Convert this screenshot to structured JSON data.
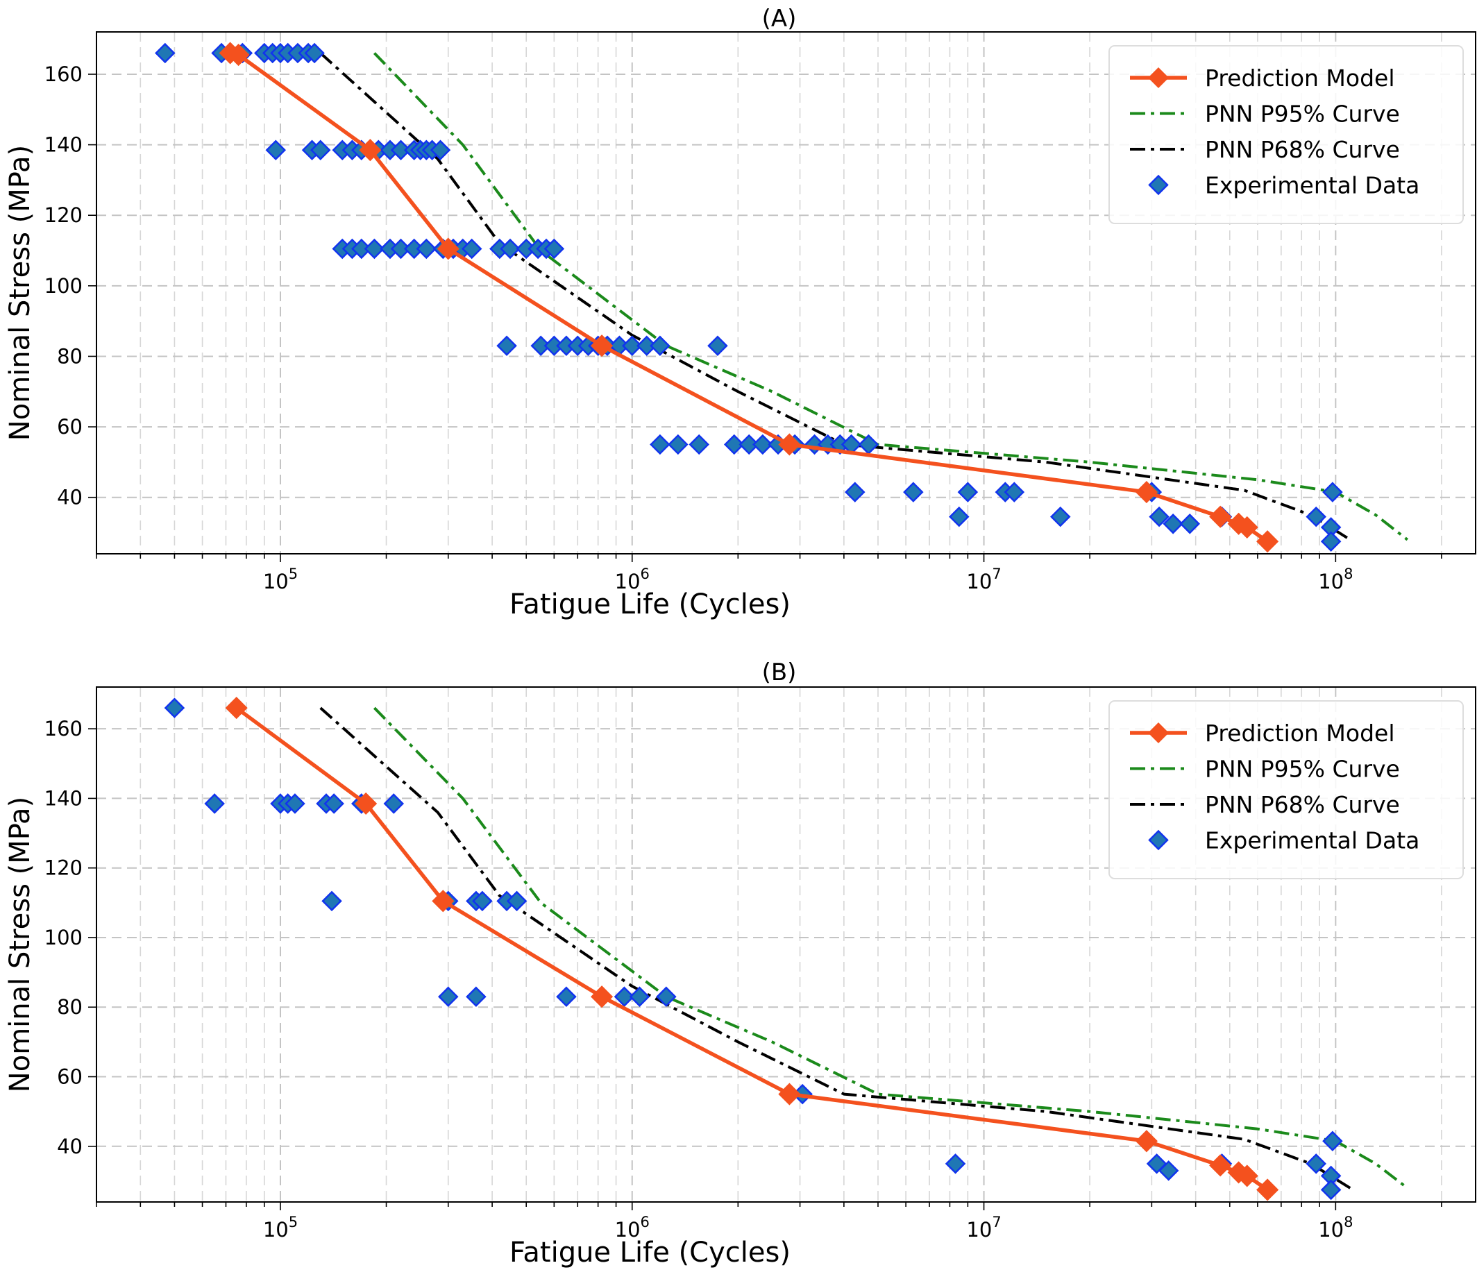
{
  "chart_data": [
    {
      "panel": "A",
      "type": "scatter",
      "title": "(A)",
      "xlabel": "Fatigue Life (Cycles)",
      "ylabel": "Nominal Stress (MPa)",
      "x_scale": "log",
      "xlim": [
        30000,
        250000000
      ],
      "ylim": [
        24,
        172
      ],
      "x_ticks": [
        {
          "value": 100000,
          "base": "10",
          "exp": "5"
        },
        {
          "value": 1000000,
          "base": "10",
          "exp": "6"
        },
        {
          "value": 10000000,
          "base": "10",
          "exp": "7"
        },
        {
          "value": 100000000,
          "base": "10",
          "exp": "8"
        }
      ],
      "y_ticks": [
        40,
        60,
        80,
        100,
        120,
        140,
        160
      ],
      "grid": true,
      "legend_position": "top-right",
      "legend": [
        {
          "key": "prediction",
          "label": "Prediction Model"
        },
        {
          "key": "p95",
          "label": "PNN P95% Curve"
        },
        {
          "key": "p68",
          "label": "PNN P68% Curve"
        },
        {
          "key": "experimental",
          "label": "Experimental Data"
        }
      ],
      "series": [
        {
          "key": "prediction",
          "name": "Prediction Model",
          "style": "line-diamond",
          "color": "#f4511e",
          "x": [
            72000,
            76000,
            180000,
            300000,
            820000,
            2800000,
            29000000,
            47000000,
            53000000,
            56000000,
            64000000
          ],
          "y": [
            166,
            165.5,
            138.5,
            110.5,
            83,
            55,
            41.5,
            34.5,
            32.5,
            31.5,
            27.5
          ]
        },
        {
          "key": "p95",
          "name": "PNN P95% Curve",
          "style": "dash-dot",
          "color": "#1b8a1b",
          "x": [
            185000,
            330000,
            550000,
            1250000,
            2500000,
            5000000,
            20000000,
            60000000,
            100000000,
            130000000,
            160000000
          ],
          "y": [
            166,
            140,
            110,
            83,
            70,
            55,
            50,
            45,
            41.5,
            35,
            28
          ]
        },
        {
          "key": "p68",
          "name": "PNN P68% Curve",
          "style": "dash-dot",
          "color": "#000000",
          "x": [
            130000,
            280000,
            420000,
            1000000,
            2000000,
            4000000,
            15000000,
            55000000,
            85000000,
            110000000
          ],
          "y": [
            166,
            136,
            112,
            86,
            70,
            55,
            50,
            42,
            35,
            28
          ]
        },
        {
          "key": "experimental",
          "name": "Experimental Data",
          "style": "diamond",
          "color": "#1f77b4",
          "edge_color": "#1133ee",
          "x": [
            47000,
            68000,
            72000,
            78000,
            90000,
            95000,
            100000,
            105000,
            112000,
            120000,
            125000,
            97000,
            123000,
            130000,
            150000,
            160000,
            170000,
            180000,
            190000,
            205000,
            220000,
            240000,
            250000,
            260000,
            270000,
            285000,
            150000,
            160000,
            170000,
            185000,
            205000,
            220000,
            240000,
            260000,
            290000,
            310000,
            330000,
            350000,
            420000,
            450000,
            500000,
            540000,
            570000,
            600000,
            440000,
            550000,
            600000,
            650000,
            700000,
            750000,
            800000,
            850000,
            920000,
            1000000,
            1100000,
            1200000,
            1750000,
            1200000,
            1350000,
            1550000,
            1950000,
            2150000,
            2350000,
            2600000,
            2900000,
            3300000,
            3600000,
            3900000,
            4200000,
            4700000,
            4300000,
            6300000,
            9000000,
            11500000,
            12200000,
            8500000,
            16500000,
            30000000,
            31500000,
            34500000,
            38500000,
            47500000,
            88000000,
            98000000,
            97000000,
            97000000
          ],
          "y": [
            166,
            166,
            166,
            166,
            166,
            166,
            166,
            166,
            166,
            166,
            166,
            138.5,
            138.5,
            138.5,
            138.5,
            138.5,
            138.5,
            138.5,
            138.5,
            138.5,
            138.5,
            138.5,
            138.5,
            138.5,
            138.5,
            138.5,
            110.5,
            110.5,
            110.5,
            110.5,
            110.5,
            110.5,
            110.5,
            110.5,
            110.5,
            110.5,
            110.5,
            110.5,
            110.5,
            110.5,
            110.5,
            110.5,
            110.5,
            110.5,
            83,
            83,
            83,
            83,
            83,
            83,
            83,
            83,
            83,
            83,
            83,
            83,
            83,
            55,
            55,
            55,
            55,
            55,
            55,
            55,
            55,
            55,
            55,
            55,
            55,
            55,
            41.5,
            41.5,
            41.5,
            41.5,
            41.5,
            34.5,
            34.5,
            41.5,
            34.5,
            32.5,
            32.5,
            34.5,
            34.5,
            41.5,
            31.5,
            27.5
          ]
        }
      ]
    },
    {
      "panel": "B",
      "type": "scatter",
      "title": "(B)",
      "xlabel": "Fatigue Life (Cycles)",
      "ylabel": "Nominal Stress (MPa)",
      "x_scale": "log",
      "xlim": [
        30000,
        250000000
      ],
      "ylim": [
        24,
        172
      ],
      "x_ticks": [
        {
          "value": 100000,
          "base": "10",
          "exp": "5"
        },
        {
          "value": 1000000,
          "base": "10",
          "exp": "6"
        },
        {
          "value": 10000000,
          "base": "10",
          "exp": "7"
        },
        {
          "value": 100000000,
          "base": "10",
          "exp": "8"
        }
      ],
      "y_ticks": [
        40,
        60,
        80,
        100,
        120,
        140,
        160
      ],
      "grid": true,
      "legend_position": "top-right",
      "legend": [
        {
          "key": "prediction",
          "label": "Prediction Model"
        },
        {
          "key": "p95",
          "label": "PNN P95% Curve"
        },
        {
          "key": "p68",
          "label": "PNN P68% Curve"
        },
        {
          "key": "experimental",
          "label": "Experimental Data"
        }
      ],
      "series": [
        {
          "key": "prediction",
          "name": "Prediction Model",
          "style": "line-diamond",
          "color": "#f4511e",
          "x": [
            75000,
            175000,
            290000,
            820000,
            2800000,
            29000000,
            47000000,
            53000000,
            56000000,
            64000000
          ],
          "y": [
            166,
            138.5,
            110.5,
            83,
            55,
            41.5,
            34.5,
            32.5,
            31.5,
            27.5
          ]
        },
        {
          "key": "p95",
          "name": "PNN P95% Curve",
          "style": "dash-dot",
          "color": "#1b8a1b",
          "x": [
            185000,
            330000,
            550000,
            1250000,
            2500000,
            5000000,
            20000000,
            60000000,
            100000000,
            130000000,
            160000000
          ],
          "y": [
            166,
            140,
            110,
            83,
            70,
            55,
            50,
            45,
            41.5,
            35,
            28
          ]
        },
        {
          "key": "p68",
          "name": "PNN P68% Curve",
          "style": "dash-dot",
          "color": "#000000",
          "x": [
            130000,
            280000,
            420000,
            1000000,
            2000000,
            4000000,
            15000000,
            55000000,
            85000000,
            110000000
          ],
          "y": [
            166,
            136,
            112,
            86,
            70,
            55,
            50,
            42,
            35,
            28
          ]
        },
        {
          "key": "experimental",
          "name": "Experimental Data",
          "style": "diamond",
          "color": "#1f77b4",
          "edge_color": "#1133ee",
          "x": [
            50000,
            65000,
            100000,
            105000,
            110000,
            135000,
            142000,
            170000,
            210000,
            140000,
            300000,
            360000,
            375000,
            440000,
            470000,
            300000,
            360000,
            650000,
            950000,
            1050000,
            1250000,
            3050000,
            8300000,
            31000000,
            33500000,
            47500000,
            88000000,
            98000000,
            97000000,
            97000000
          ],
          "y": [
            166,
            138.5,
            138.5,
            138.5,
            138.5,
            138.5,
            138.5,
            138.5,
            138.5,
            110.5,
            110.5,
            110.5,
            110.5,
            110.5,
            110.5,
            83,
            83,
            83,
            83,
            83,
            83,
            55,
            35,
            35,
            33,
            35,
            35,
            41.5,
            31.5,
            27.5
          ]
        }
      ]
    }
  ]
}
